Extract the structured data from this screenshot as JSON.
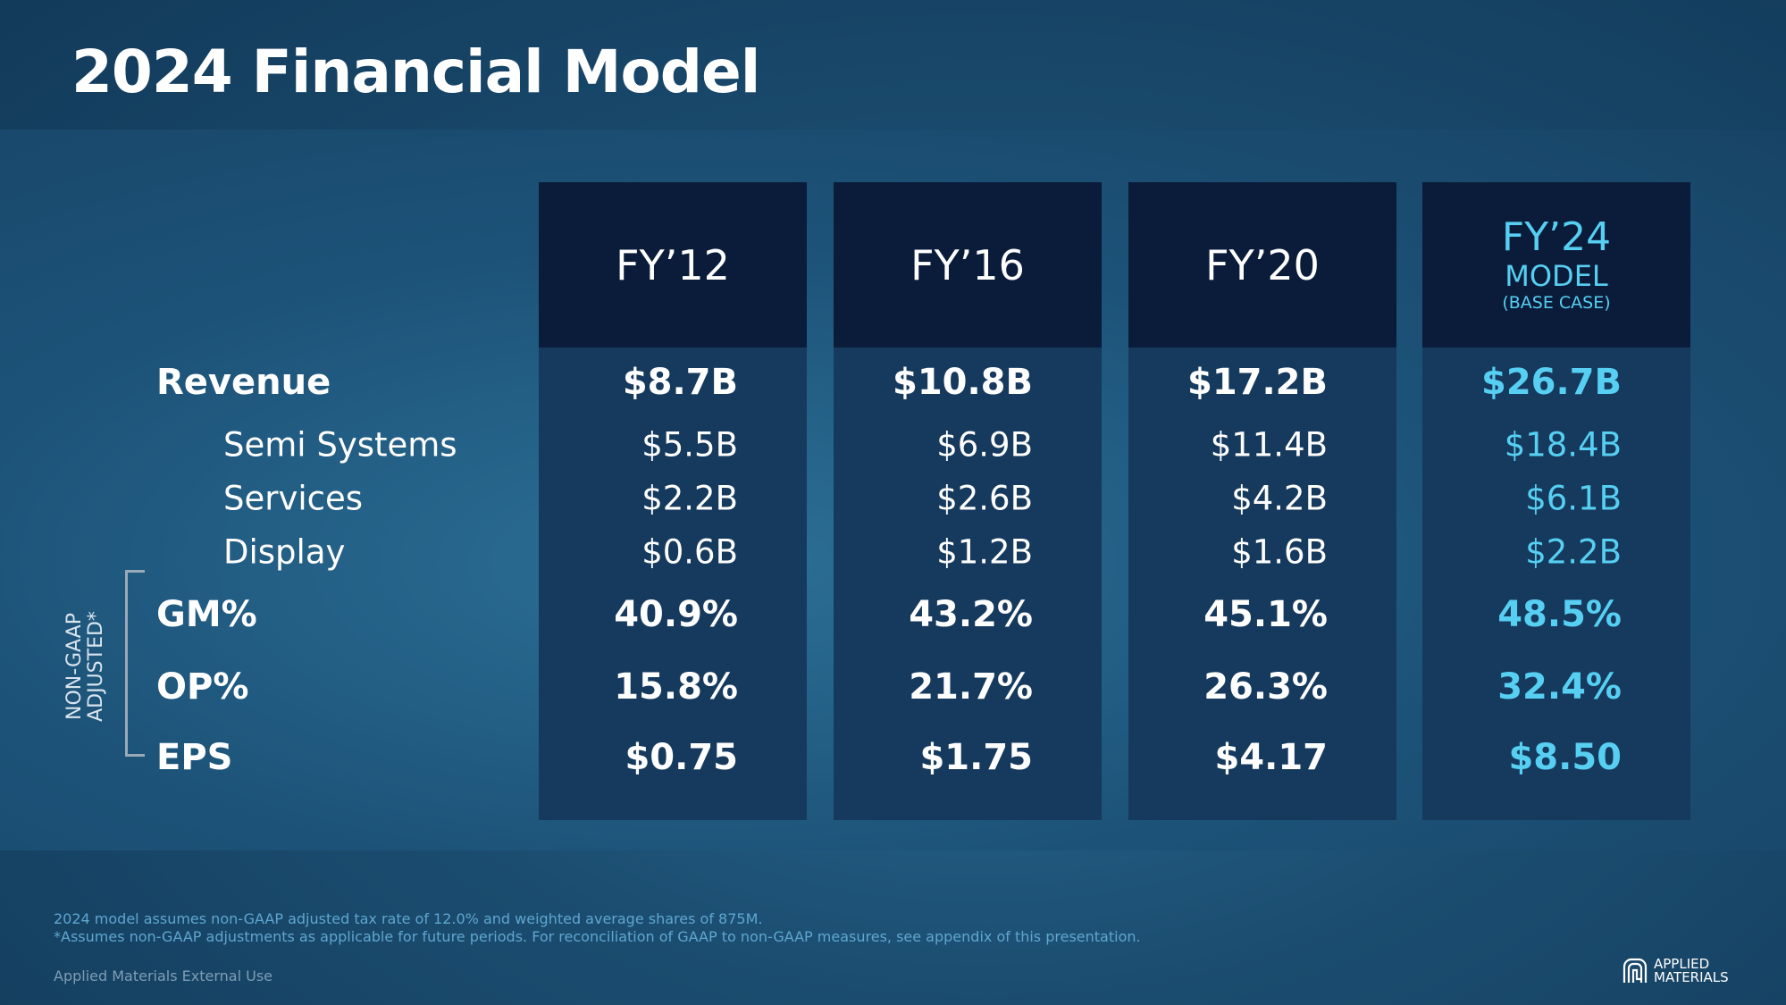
{
  "title": "2024 Financial Model",
  "columns": [
    {
      "label": "FY’12"
    },
    {
      "label": "FY’16"
    },
    {
      "label": "FY’20"
    },
    {
      "label": "FY’24",
      "sub1": "MODEL",
      "sub2": "(BASE CASE)"
    }
  ],
  "rows": [
    {
      "label": "Revenue",
      "values": [
        "$8.7B",
        "$10.8B",
        "$17.2B",
        "$26.7B"
      ]
    },
    {
      "label": "Semi Systems",
      "values": [
        "$5.5B",
        "$6.9B",
        "$11.4B",
        "$18.4B"
      ]
    },
    {
      "label": "Services",
      "values": [
        "$2.2B",
        "$2.6B",
        "$4.2B",
        "$6.1B"
      ]
    },
    {
      "label": "Display",
      "values": [
        "$0.6B",
        "$1.2B",
        "$1.6B",
        "$2.2B"
      ]
    },
    {
      "label": "GM%",
      "values": [
        "40.9%",
        "43.2%",
        "45.1%",
        "48.5%"
      ]
    },
    {
      "label": "OP%",
      "values": [
        "15.8%",
        "21.7%",
        "26.3%",
        "32.4%"
      ]
    },
    {
      "label": "EPS",
      "values": [
        "$0.75",
        "$1.75",
        "$4.17",
        "$8.50"
      ]
    }
  ],
  "bracket_label_line1": "NON-GAAP",
  "bracket_label_line2": "ADJUSTED*",
  "footnotes": [
    "2024 model assumes non-GAAP adjusted  tax rate of 12.0% and weighted average shares of 875M.",
    "*Assumes non-GAAP adjustments as applicable for future periods. For reconciliation of GAAP to non-GAAP measures, see appendix of this presentation."
  ],
  "classification": "Applied Materials External Use",
  "logo": {
    "line1": "APPLIED",
    "line2": "MATERIALS"
  },
  "colors": {
    "highlight": "#56cff2",
    "header": "#0b1c3a",
    "column": "#163a5e"
  }
}
